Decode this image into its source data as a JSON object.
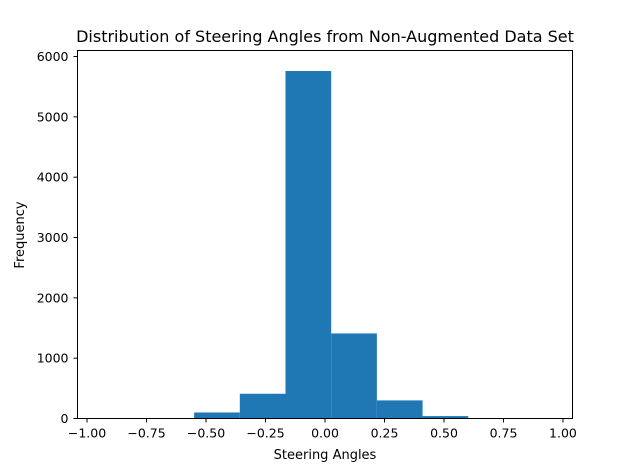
{
  "chart_data": {
    "type": "bar",
    "title": "Distribution of Steering Angles from Non-Augmented Data Set",
    "xlabel": "Steering Angles",
    "ylabel": "Frequency",
    "xlim": [
      -1.04,
      1.04
    ],
    "ylim": [
      0,
      6100
    ],
    "x_ticks": [
      -1.0,
      -0.75,
      -0.5,
      -0.25,
      0.0,
      0.25,
      0.5,
      0.75,
      1.0
    ],
    "x_tick_labels": [
      "−1.00",
      "−0.75",
      "−0.50",
      "−0.25",
      "0.00",
      "0.25",
      "0.50",
      "0.75",
      "1.00"
    ],
    "y_ticks": [
      0,
      1000,
      2000,
      3000,
      4000,
      5000,
      6000
    ],
    "y_tick_labels": [
      "0",
      "1000",
      "2000",
      "3000",
      "4000",
      "5000",
      "6000"
    ],
    "bin_edges": [
      -0.55,
      -0.358,
      -0.166,
      0.026,
      0.218,
      0.41,
      0.602
    ],
    "values": [
      100,
      410,
      5760,
      1410,
      300,
      40
    ],
    "bar_color": "#1f77b4",
    "grid": false,
    "legend": "none"
  }
}
